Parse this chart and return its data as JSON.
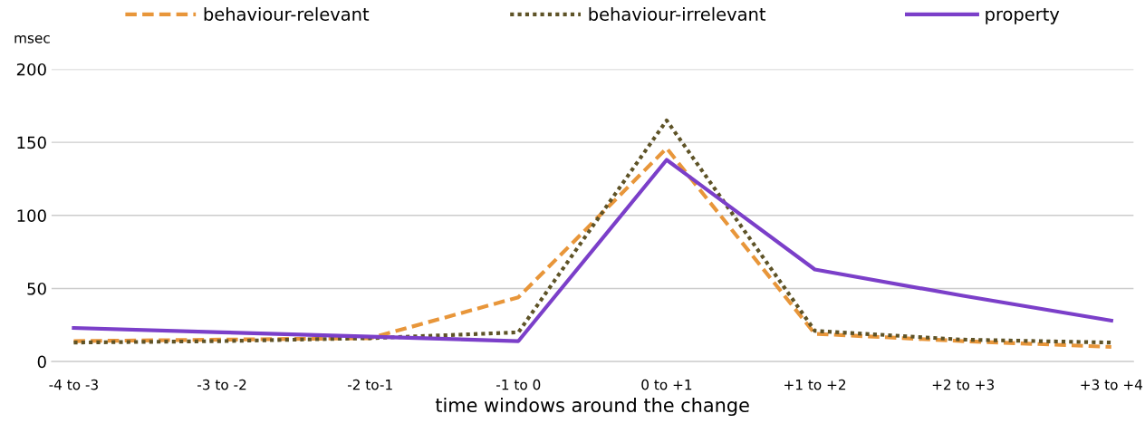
{
  "chart_data": {
    "type": "line",
    "xlabel": "time windows around the change",
    "ylabel": "msec",
    "categories": [
      "-4 to -3",
      "-3 to -2",
      "-2 to-1",
      "-1 to 0",
      "0 to +1",
      "+1 to +2",
      "+2 to +3",
      "+3 to +4"
    ],
    "series": [
      {
        "name": "behaviour-relevant",
        "color": "#e8963a",
        "line_style": "dashed",
        "values": [
          14,
          15,
          16,
          44,
          146,
          19,
          14,
          10
        ]
      },
      {
        "name": "behaviour-irrelevant",
        "color": "#5e5327",
        "line_style": "dotted",
        "values": [
          13,
          14,
          16,
          20,
          165,
          21,
          15,
          13
        ]
      },
      {
        "name": "property",
        "color": "#7b3fc9",
        "line_style": "solid",
        "values": [
          23,
          20,
          17,
          14,
          138,
          63,
          45,
          28
        ]
      }
    ],
    "ylim": [
      0,
      200
    ],
    "yticks": [
      0,
      50,
      100,
      150,
      200
    ],
    "grid": "y",
    "legend": "top",
    "marker": "none"
  }
}
